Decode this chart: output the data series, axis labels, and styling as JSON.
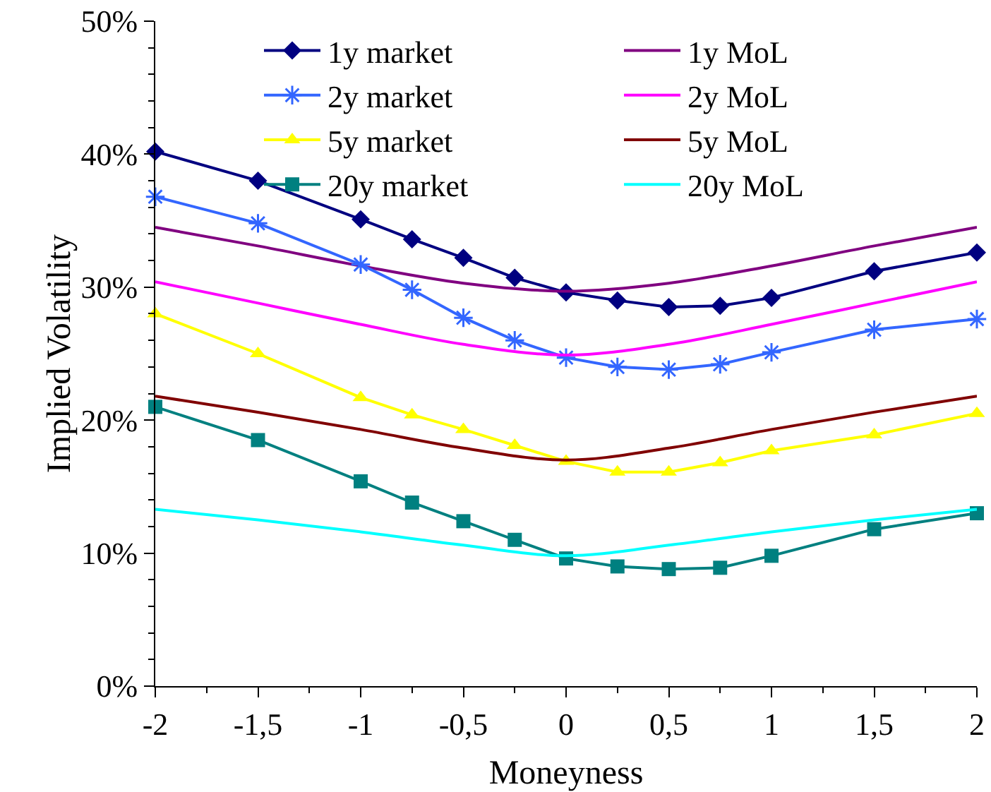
{
  "chart_data": {
    "type": "line",
    "xlabel": "Moneyness",
    "ylabel": "Implied Volatility",
    "xlim": [
      -2,
      2
    ],
    "xticks": [
      -2,
      {
        "value": -1.5,
        "label": "-1,5"
      },
      -1,
      {
        "value": -0.5,
        "label": "-0,5"
      },
      0,
      {
        "value": 0.5,
        "label": "0,5"
      },
      1,
      {
        "value": 1.5,
        "label": "1,5"
      },
      2
    ],
    "ylim": [
      0,
      50
    ],
    "yticks": [
      {
        "value": 0,
        "label": "0%"
      },
      {
        "value": 10,
        "label": "10%"
      },
      {
        "value": 20,
        "label": "20%"
      },
      {
        "value": 30,
        "label": "30%"
      },
      {
        "value": 40,
        "label": "40%"
      },
      {
        "value": 50,
        "label": "50%"
      }
    ],
    "grid": false,
    "legend": "top right",
    "line_style": "solid",
    "series": [
      {
        "name": "1y market",
        "color": "#000080",
        "marker": "diamond",
        "x": [
          -2,
          -1.5,
          -1,
          -0.75,
          -0.5,
          -0.25,
          0,
          0.25,
          0.5,
          0.75,
          1,
          1.5,
          2
        ],
        "values": [
          40.2,
          38.0,
          35.1,
          33.6,
          32.2,
          30.7,
          29.6,
          29.0,
          28.5,
          28.6,
          29.2,
          31.2,
          32.6
        ]
      },
      {
        "name": "1y MoL",
        "color": "#800080",
        "marker": "none",
        "x": [
          -2,
          -1.5,
          -1,
          -0.5,
          0,
          0.5,
          1,
          1.5,
          2
        ],
        "values": [
          34.5,
          33.1,
          31.6,
          30.3,
          29.7,
          30.3,
          31.6,
          33.1,
          34.5
        ]
      },
      {
        "name": "2y market",
        "color": "#3366ff",
        "marker": "cross",
        "x": [
          -2,
          -1.5,
          -1,
          -0.75,
          -0.5,
          -0.25,
          0,
          0.25,
          0.5,
          0.75,
          1,
          1.5,
          2
        ],
        "values": [
          36.8,
          34.8,
          31.7,
          29.8,
          27.7,
          26.0,
          24.7,
          24.0,
          23.8,
          24.2,
          25.1,
          26.8,
          27.6
        ]
      },
      {
        "name": "2y MoL",
        "color": "#ff00ff",
        "marker": "none",
        "x": [
          -2,
          -1.5,
          -1,
          -0.5,
          0,
          0.5,
          1,
          1.5,
          2
        ],
        "values": [
          30.4,
          28.8,
          27.2,
          25.7,
          24.9,
          25.7,
          27.2,
          28.8,
          30.4
        ]
      },
      {
        "name": "5y market",
        "color": "#ffff00",
        "marker": "triangle",
        "x": [
          -2,
          -1.5,
          -1,
          -0.75,
          -0.5,
          -0.25,
          0,
          0.25,
          0.5,
          0.75,
          1,
          1.5,
          2
        ],
        "values": [
          28.0,
          25.0,
          21.7,
          20.4,
          19.3,
          18.1,
          16.9,
          16.1,
          16.1,
          16.8,
          17.7,
          18.9,
          20.5
        ]
      },
      {
        "name": "5y MoL",
        "color": "#800000",
        "marker": "none",
        "x": [
          -2,
          -1.5,
          -1,
          -0.5,
          0,
          0.5,
          1,
          1.5,
          2
        ],
        "values": [
          21.8,
          20.6,
          19.3,
          17.9,
          17.0,
          17.9,
          19.3,
          20.6,
          21.8
        ]
      },
      {
        "name": "20y market",
        "color": "#008080",
        "marker": "square",
        "x": [
          -2,
          -1.5,
          -1,
          -0.75,
          -0.5,
          -0.25,
          0,
          0.25,
          0.5,
          0.75,
          1,
          1.5,
          2
        ],
        "values": [
          21.0,
          18.5,
          15.4,
          13.8,
          12.4,
          11.0,
          9.6,
          9.0,
          8.8,
          8.9,
          9.8,
          11.8,
          13.0
        ]
      },
      {
        "name": "20y MoL",
        "color": "#00ffff",
        "marker": "none",
        "x": [
          -2,
          -1.5,
          -1,
          -0.5,
          0,
          0.5,
          1,
          1.5,
          2
        ],
        "values": [
          13.3,
          12.5,
          11.6,
          10.6,
          9.8,
          10.6,
          11.6,
          12.5,
          13.3
        ]
      }
    ]
  }
}
